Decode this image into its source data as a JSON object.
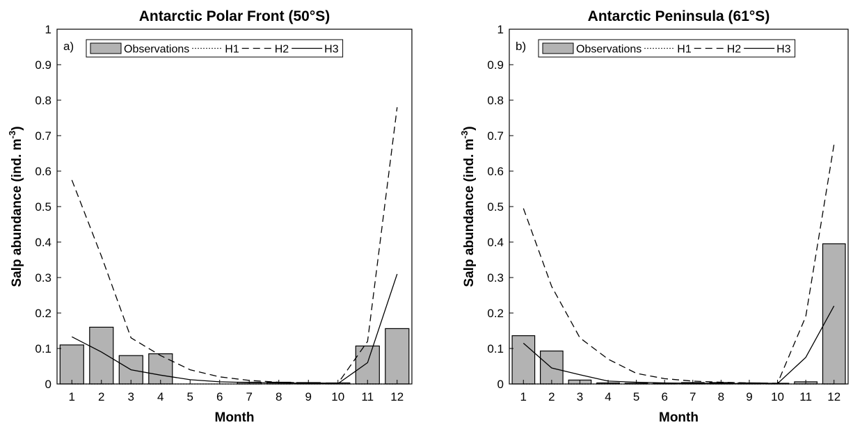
{
  "chart_data": [
    {
      "type": "bar",
      "panel_label": "a)",
      "title": "Antarctic Polar Front (50°S)",
      "xlabel": "Month",
      "ylabel_main": "Salp abundance (ind. m",
      "ylabel_sup": "-3",
      "ylabel_close": ")",
      "categories": [
        "1",
        "2",
        "3",
        "4",
        "5",
        "6",
        "7",
        "8",
        "9",
        "10",
        "11",
        "12"
      ],
      "yticks": [
        "0",
        "0.1",
        "0.2",
        "0.3",
        "0.4",
        "0.5",
        "0.6",
        "0.7",
        "0.8",
        "0.9",
        "1"
      ],
      "ylim": [
        0,
        1
      ],
      "xlim": [
        0.5,
        12.5
      ],
      "legend_position": "top",
      "bar_color": "#b3b3b3",
      "series": [
        {
          "name": "Observations",
          "kind": "bar",
          "values": [
            0.11,
            0.16,
            0.08,
            0.085,
            0,
            0,
            0.005,
            0.005,
            0.004,
            0.003,
            0.107,
            0.156
          ]
        },
        {
          "name": "H1",
          "kind": "line",
          "style": "dotted",
          "values": [
            0,
            0,
            0,
            0,
            0,
            0,
            0,
            0,
            0,
            0,
            0,
            0
          ]
        },
        {
          "name": "H2",
          "kind": "line",
          "style": "dashed",
          "values": [
            0.575,
            0.36,
            0.13,
            0.08,
            0.04,
            0.02,
            0.01,
            0.005,
            0.003,
            0.002,
            0.12,
            0.78
          ]
        },
        {
          "name": "H3",
          "kind": "line",
          "style": "solid",
          "values": [
            0.133,
            0.09,
            0.04,
            0.025,
            0.012,
            0.006,
            0.004,
            0.003,
            0.002,
            0.001,
            0.06,
            0.31
          ]
        }
      ]
    },
    {
      "type": "bar",
      "panel_label": "b)",
      "title": "Antarctic Peninsula (61°S)",
      "xlabel": "Month",
      "ylabel_main": "Salp abundance (ind. m",
      "ylabel_sup": "-3",
      "ylabel_close": ")",
      "categories": [
        "1",
        "2",
        "3",
        "4",
        "5",
        "6",
        "7",
        "8",
        "9",
        "10",
        "11",
        "12"
      ],
      "yticks": [
        "0",
        "0.1",
        "0.2",
        "0.3",
        "0.4",
        "0.5",
        "0.6",
        "0.7",
        "0.8",
        "0.9",
        "1"
      ],
      "ylim": [
        0,
        1
      ],
      "xlim": [
        0.5,
        12.5
      ],
      "legend_position": "top",
      "bar_color": "#b3b3b3",
      "series": [
        {
          "name": "Observations",
          "kind": "bar",
          "values": [
            0.136,
            0.093,
            0.011,
            0.003,
            0.002,
            0.002,
            0.004,
            0.004,
            0.003,
            0.002,
            0.006,
            0.395
          ]
        },
        {
          "name": "H1",
          "kind": "line",
          "style": "dotted",
          "values": [
            0,
            0,
            0,
            0,
            0,
            0,
            0,
            0,
            0,
            0,
            0,
            0
          ]
        },
        {
          "name": "H2",
          "kind": "line",
          "style": "dashed",
          "values": [
            0.495,
            0.275,
            0.13,
            0.07,
            0.03,
            0.015,
            0.008,
            0.005,
            0.003,
            0.002,
            0.19,
            0.675
          ]
        },
        {
          "name": "H3",
          "kind": "line",
          "style": "solid",
          "values": [
            0.115,
            0.045,
            0.026,
            0.008,
            0.005,
            0.003,
            0.002,
            0.002,
            0.001,
            0.001,
            0.075,
            0.22
          ]
        }
      ]
    }
  ]
}
